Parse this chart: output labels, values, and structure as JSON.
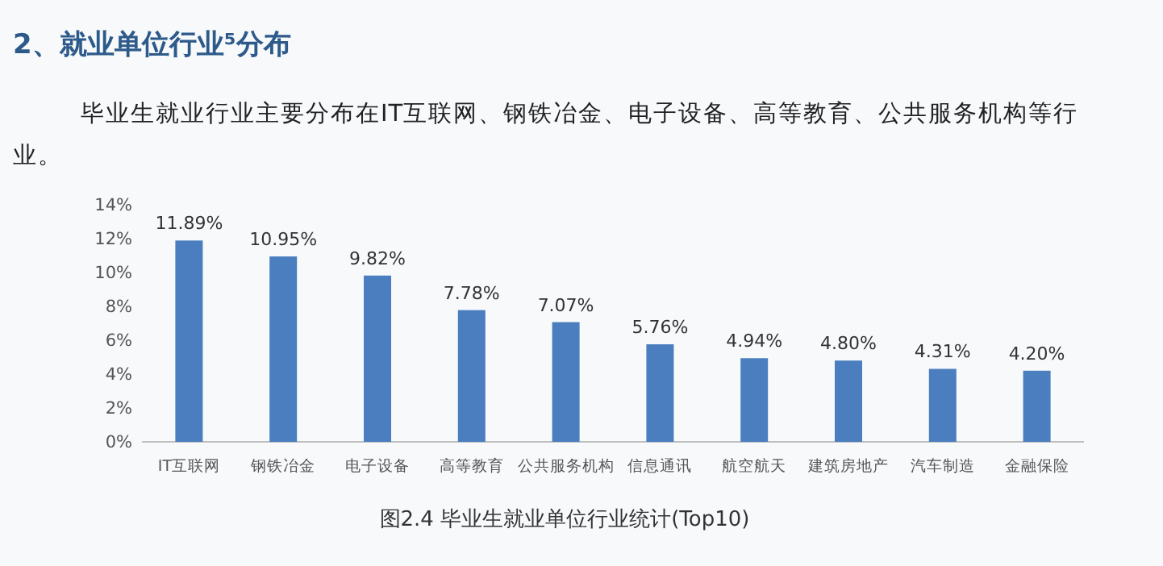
{
  "chart_data": {
    "type": "bar",
    "title": "2、就业单位行业⁵分布",
    "subtitle": "毕业生就业行业主要分布在IT互联网、钢铁冶金、电子设备、高等教育、公共服务机构等行业。",
    "categories": [
      "IT互联网",
      "钢铁冶金",
      "电子设备",
      "高等教育",
      "公共服务机构",
      "信息通讯",
      "航空航天",
      "建筑房地产",
      "汽车制造",
      "金融保险"
    ],
    "values": [
      11.89,
      10.95,
      9.82,
      7.78,
      7.07,
      5.76,
      4.94,
      4.8,
      4.31,
      4.2
    ],
    "value_labels": [
      "11.89%",
      "10.95%",
      "9.82%",
      "7.78%",
      "7.07%",
      "5.76%",
      "4.94%",
      "4.80%",
      "4.31%",
      "4.20%"
    ],
    "color": "#4a7ebf",
    "ylim": [
      0,
      14
    ],
    "yticks": [
      {
        "value": 0,
        "label": "0%"
      },
      {
        "value": 2,
        "label": "2%"
      },
      {
        "value": 4,
        "label": "4%"
      },
      {
        "value": 6,
        "label": "6%"
      },
      {
        "value": 8,
        "label": "8%"
      },
      {
        "value": 10,
        "label": "10%"
      },
      {
        "value": 12,
        "label": "12%"
      },
      {
        "value": 14,
        "label": "14%"
      }
    ],
    "grid": false,
    "annotations": [
      "图2.4  毕业生就业单位行业统计(Top10)"
    ]
  }
}
